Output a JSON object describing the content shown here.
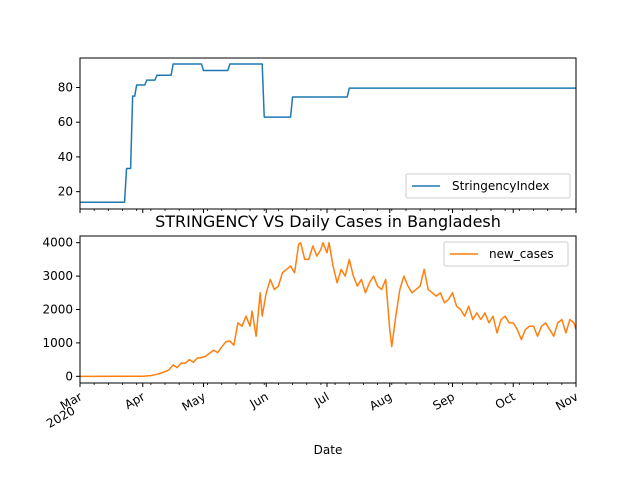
{
  "chart_data": [
    {
      "type": "line",
      "title": "",
      "xlabel": "",
      "ylabel": "",
      "x_range": [
        "2020-03-01",
        "2020-11-01"
      ],
      "ylim": [
        10,
        97
      ],
      "yticks": [
        20,
        40,
        60,
        80
      ],
      "grid": false,
      "legend": "lower-right",
      "series": [
        {
          "name": "StringencyIndex",
          "color": "#1f77b4",
          "step": true,
          "points": [
            [
              "2020-03-01",
              13.89
            ],
            [
              "2020-03-23",
              13.89
            ],
            [
              "2020-03-24",
              33.33
            ],
            [
              "2020-03-26",
              33.33
            ],
            [
              "2020-03-27",
              75.0
            ],
            [
              "2020-03-28",
              75.0
            ],
            [
              "2020-03-29",
              81.48
            ],
            [
              "2020-04-02",
              81.48
            ],
            [
              "2020-04-03",
              84.26
            ],
            [
              "2020-04-07",
              84.26
            ],
            [
              "2020-04-08",
              87.04
            ],
            [
              "2020-04-15",
              87.04
            ],
            [
              "2020-04-16",
              93.52
            ],
            [
              "2020-04-30",
              93.52
            ],
            [
              "2020-05-01",
              89.81
            ],
            [
              "2020-05-13",
              89.81
            ],
            [
              "2020-05-14",
              93.52
            ],
            [
              "2020-05-30",
              93.52
            ],
            [
              "2020-05-31",
              62.96
            ],
            [
              "2020-06-13",
              62.96
            ],
            [
              "2020-06-14",
              74.54
            ],
            [
              "2020-07-11",
              74.54
            ],
            [
              "2020-07-12",
              79.63
            ],
            [
              "2020-11-01",
              79.63
            ]
          ]
        }
      ]
    },
    {
      "type": "line",
      "title": "STRINGENCY VS Daily Cases in Bangladesh",
      "xlabel": "Date",
      "ylabel": "",
      "x_range": [
        "2020-03-01",
        "2020-11-01"
      ],
      "ylim": [
        -200,
        4200
      ],
      "yticks": [
        0,
        1000,
        2000,
        3000,
        4000
      ],
      "xticks": [
        {
          "date": "2020-03-01",
          "label": "Mar",
          "sub": "2020"
        },
        {
          "date": "2020-04-01",
          "label": "Apr"
        },
        {
          "date": "2020-05-01",
          "label": "May"
        },
        {
          "date": "2020-06-01",
          "label": "Jun"
        },
        {
          "date": "2020-07-01",
          "label": "Jul"
        },
        {
          "date": "2020-08-01",
          "label": "Aug"
        },
        {
          "date": "2020-09-01",
          "label": "Sep"
        },
        {
          "date": "2020-10-01",
          "label": "Oct"
        },
        {
          "date": "2020-11-01",
          "label": "Nov"
        }
      ],
      "grid": false,
      "legend": "top-right",
      "series": [
        {
          "name": "new_cases",
          "color": "#ff7f0e",
          "points": [
            [
              "2020-03-01",
              0
            ],
            [
              "2020-04-01",
              2
            ],
            [
              "2020-04-05",
              20
            ],
            [
              "2020-04-08",
              60
            ],
            [
              "2020-04-10",
              100
            ],
            [
              "2020-04-12",
              140
            ],
            [
              "2020-04-14",
              200
            ],
            [
              "2020-04-16",
              340
            ],
            [
              "2020-04-18",
              260
            ],
            [
              "2020-04-20",
              400
            ],
            [
              "2020-04-22",
              390
            ],
            [
              "2020-04-24",
              500
            ],
            [
              "2020-04-26",
              420
            ],
            [
              "2020-04-28",
              550
            ],
            [
              "2020-04-30",
              560
            ],
            [
              "2020-05-02",
              600
            ],
            [
              "2020-05-04",
              690
            ],
            [
              "2020-05-06",
              780
            ],
            [
              "2020-05-08",
              710
            ],
            [
              "2020-05-10",
              880
            ],
            [
              "2020-05-12",
              1030
            ],
            [
              "2020-05-14",
              1060
            ],
            [
              "2020-05-16",
              930
            ],
            [
              "2020-05-18",
              1600
            ],
            [
              "2020-05-20",
              1500
            ],
            [
              "2020-05-22",
              1800
            ],
            [
              "2020-05-24",
              1500
            ],
            [
              "2020-05-25",
              1950
            ],
            [
              "2020-05-27",
              1200
            ],
            [
              "2020-05-29",
              2500
            ],
            [
              "2020-05-30",
              1800
            ],
            [
              "2020-06-01",
              2500
            ],
            [
              "2020-06-03",
              2900
            ],
            [
              "2020-06-05",
              2600
            ],
            [
              "2020-06-07",
              2700
            ],
            [
              "2020-06-09",
              3100
            ],
            [
              "2020-06-11",
              3200
            ],
            [
              "2020-06-13",
              3300
            ],
            [
              "2020-06-15",
              3100
            ],
            [
              "2020-06-17",
              3950
            ],
            [
              "2020-06-18",
              4000
            ],
            [
              "2020-06-20",
              3500
            ],
            [
              "2020-06-22",
              3500
            ],
            [
              "2020-06-24",
              3900
            ],
            [
              "2020-06-26",
              3600
            ],
            [
              "2020-06-28",
              3800
            ],
            [
              "2020-06-29",
              4000
            ],
            [
              "2020-07-01",
              3700
            ],
            [
              "2020-07-02",
              4000
            ],
            [
              "2020-07-04",
              3300
            ],
            [
              "2020-07-06",
              2800
            ],
            [
              "2020-07-08",
              3200
            ],
            [
              "2020-07-10",
              3000
            ],
            [
              "2020-07-12",
              3500
            ],
            [
              "2020-07-14",
              3000
            ],
            [
              "2020-07-16",
              2700
            ],
            [
              "2020-07-18",
              2900
            ],
            [
              "2020-07-20",
              2500
            ],
            [
              "2020-07-22",
              2800
            ],
            [
              "2020-07-24",
              3000
            ],
            [
              "2020-07-26",
              2700
            ],
            [
              "2020-07-28",
              2600
            ],
            [
              "2020-07-30",
              2900
            ],
            [
              "2020-08-01",
              1400
            ],
            [
              "2020-08-02",
              890
            ],
            [
              "2020-08-04",
              1800
            ],
            [
              "2020-08-06",
              2600
            ],
            [
              "2020-08-08",
              3000
            ],
            [
              "2020-08-10",
              2700
            ],
            [
              "2020-08-12",
              2500
            ],
            [
              "2020-08-14",
              2600
            ],
            [
              "2020-08-16",
              2700
            ],
            [
              "2020-08-18",
              3200
            ],
            [
              "2020-08-20",
              2600
            ],
            [
              "2020-08-22",
              2500
            ],
            [
              "2020-08-24",
              2400
            ],
            [
              "2020-08-26",
              2500
            ],
            [
              "2020-08-28",
              2200
            ],
            [
              "2020-08-30",
              2300
            ],
            [
              "2020-09-01",
              2500
            ],
            [
              "2020-09-03",
              2100
            ],
            [
              "2020-09-05",
              2000
            ],
            [
              "2020-09-07",
              1800
            ],
            [
              "2020-09-09",
              2100
            ],
            [
              "2020-09-11",
              1700
            ],
            [
              "2020-09-13",
              1900
            ],
            [
              "2020-09-15",
              1700
            ],
            [
              "2020-09-17",
              1900
            ],
            [
              "2020-09-19",
              1600
            ],
            [
              "2020-09-21",
              1800
            ],
            [
              "2020-09-23",
              1300
            ],
            [
              "2020-09-25",
              1700
            ],
            [
              "2020-09-27",
              1800
            ],
            [
              "2020-09-29",
              1600
            ],
            [
              "2020-10-01",
              1600
            ],
            [
              "2020-10-03",
              1400
            ],
            [
              "2020-10-05",
              1100
            ],
            [
              "2020-10-07",
              1400
            ],
            [
              "2020-10-09",
              1500
            ],
            [
              "2020-10-11",
              1500
            ],
            [
              "2020-10-13",
              1200
            ],
            [
              "2020-10-15",
              1500
            ],
            [
              "2020-10-17",
              1600
            ],
            [
              "2020-10-19",
              1400
            ],
            [
              "2020-10-21",
              1200
            ],
            [
              "2020-10-23",
              1600
            ],
            [
              "2020-10-25",
              1700
            ],
            [
              "2020-10-27",
              1300
            ],
            [
              "2020-10-29",
              1700
            ],
            [
              "2020-10-31",
              1600
            ],
            [
              "2020-11-01",
              1400
            ]
          ]
        }
      ]
    }
  ]
}
